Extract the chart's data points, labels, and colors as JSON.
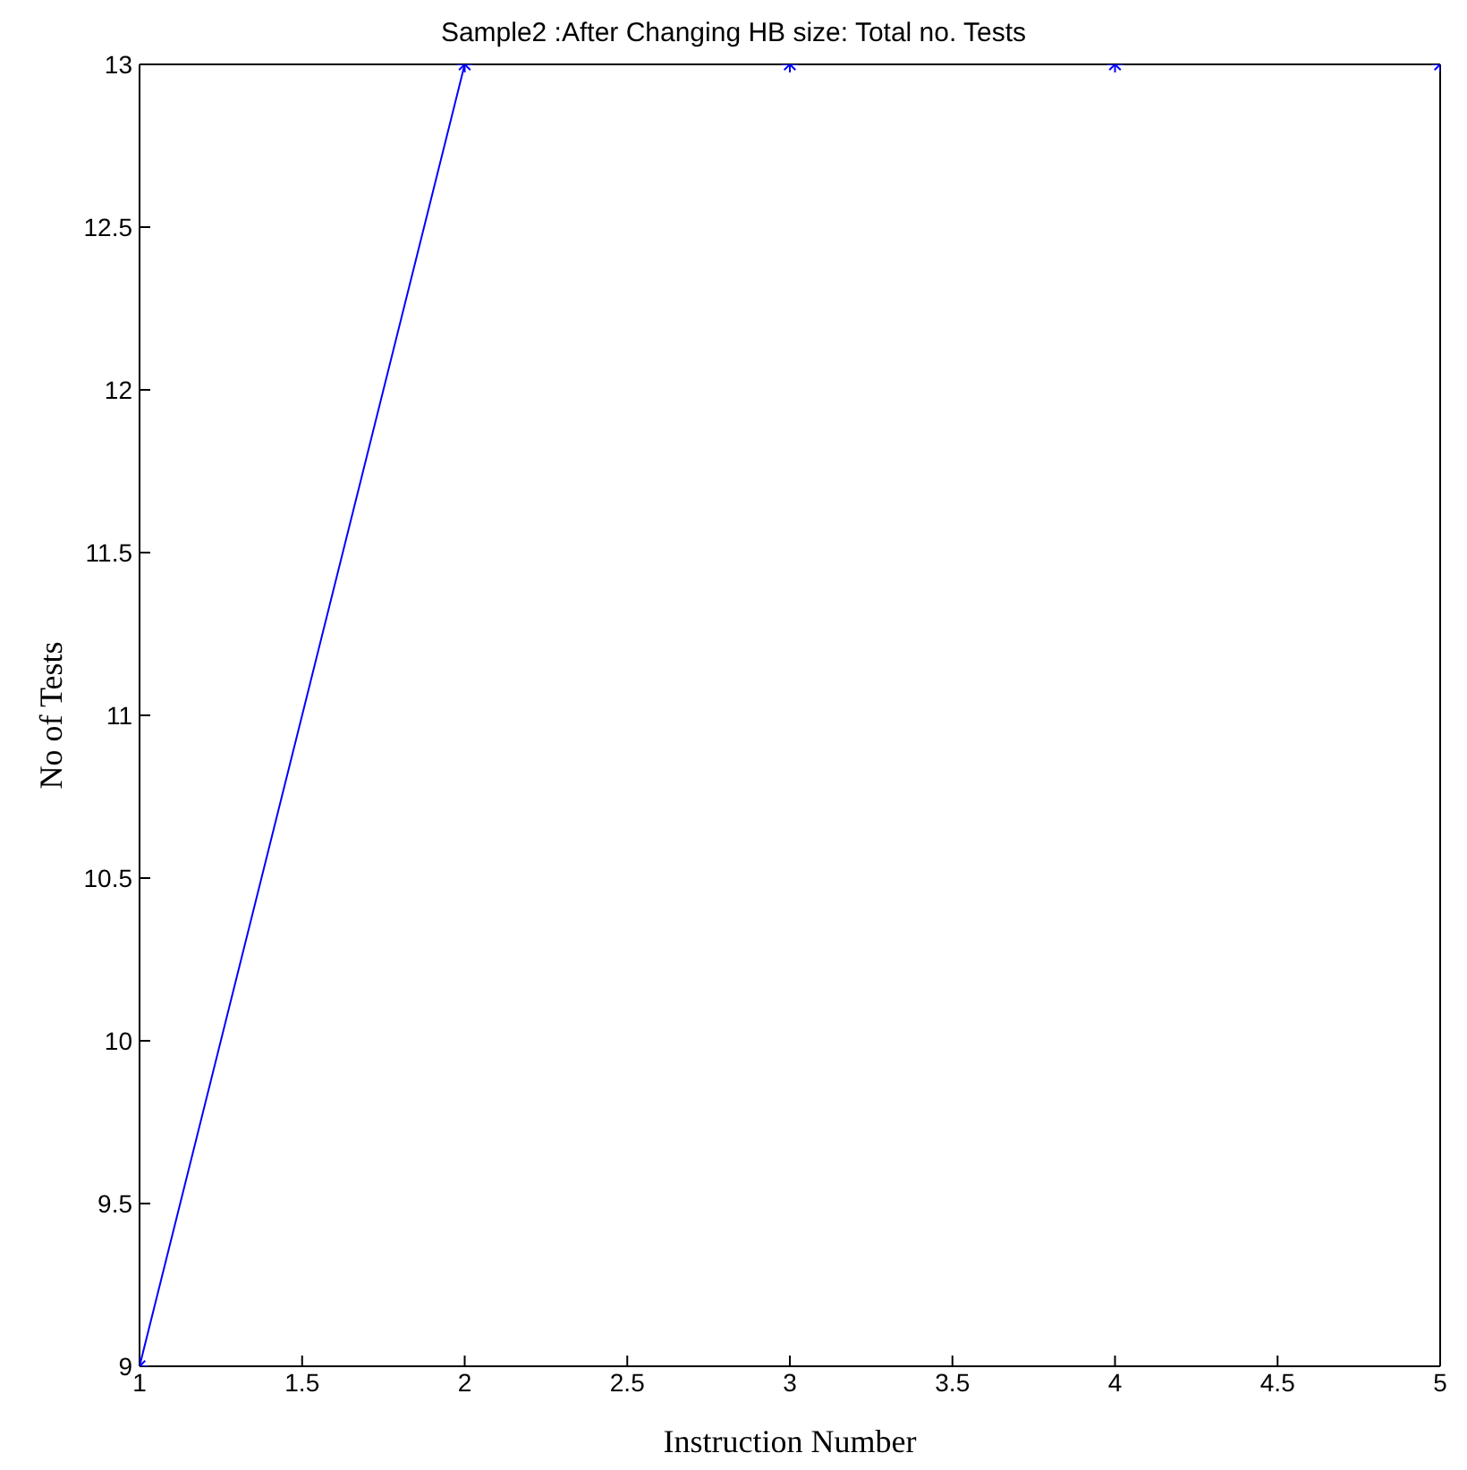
{
  "chart_data": {
    "type": "line",
    "title": "Sample2 :After Changing HB size: Total no. Tests",
    "xlabel": "Instruction Number",
    "ylabel": "No of  Tests",
    "x": [
      1,
      2,
      3,
      4,
      5
    ],
    "series": [
      {
        "color": "#0000ff",
        "values": [
          9,
          13,
          13,
          13,
          13
        ]
      }
    ],
    "xlim": [
      1,
      5
    ],
    "xticks": [
      1,
      1.5,
      2,
      2.5,
      3,
      3.5,
      4,
      4.5,
      5
    ],
    "ylim": [
      9,
      13
    ],
    "yticks": [
      9,
      9.5,
      10,
      10.5,
      11,
      11.5,
      12,
      12.5,
      13
    ],
    "marker": "cross",
    "line_style": "solid",
    "grid": false,
    "legend": false
  }
}
